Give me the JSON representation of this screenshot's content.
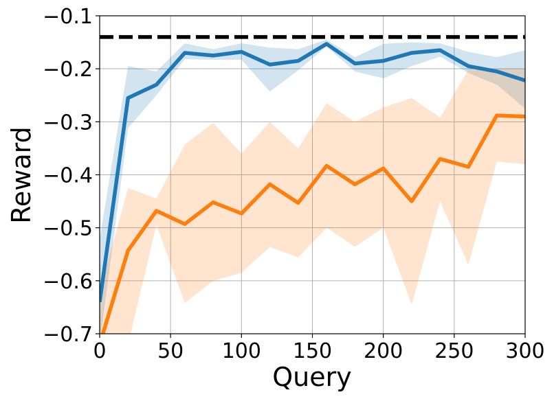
{
  "chart_data": {
    "type": "line",
    "title": "",
    "xlabel": "Query",
    "ylabel": "Reward",
    "xlim": [
      0,
      300
    ],
    "ylim": [
      -0.7,
      -0.1
    ],
    "grid": true,
    "x_ticks": [
      0,
      50,
      100,
      150,
      200,
      250,
      300
    ],
    "x_tick_labels": [
      "0",
      "50",
      "100",
      "150",
      "200",
      "250",
      "300"
    ],
    "y_ticks": [
      -0.7,
      -0.6,
      -0.5,
      -0.4,
      -0.3,
      -0.2,
      -0.1
    ],
    "y_tick_labels": [
      "−0.7",
      "−0.6",
      "−0.5",
      "−0.4",
      "−0.3",
      "−0.2",
      "−0.1"
    ],
    "x": [
      0,
      20,
      40,
      60,
      80,
      100,
      120,
      140,
      160,
      180,
      200,
      220,
      240,
      260,
      280,
      300
    ],
    "series": [
      {
        "color": "#1f77b4",
        "band_color": "#1f77b4",
        "values": [
          -0.64,
          -0.255,
          -0.23,
          -0.17,
          -0.175,
          -0.168,
          -0.192,
          -0.185,
          -0.153,
          -0.19,
          -0.185,
          -0.17,
          -0.165,
          -0.195,
          -0.205,
          -0.222
        ],
        "upper": [
          -0.52,
          -0.195,
          -0.205,
          -0.152,
          -0.163,
          -0.152,
          -0.16,
          -0.163,
          -0.145,
          -0.178,
          -0.153,
          -0.15,
          -0.152,
          -0.168,
          -0.178,
          -0.165
        ],
        "lower": [
          -0.72,
          -0.312,
          -0.25,
          -0.182,
          -0.183,
          -0.183,
          -0.243,
          -0.203,
          -0.158,
          -0.205,
          -0.218,
          -0.195,
          -0.177,
          -0.208,
          -0.23,
          -0.275
        ]
      },
      {
        "color": "#ff7f0e",
        "band_color": "#ff7f0e",
        "values": [
          -0.72,
          -0.543,
          -0.468,
          -0.493,
          -0.452,
          -0.473,
          -0.418,
          -0.453,
          -0.383,
          -0.418,
          -0.388,
          -0.45,
          -0.37,
          -0.385,
          -0.288,
          -0.29
        ],
        "upper": [
          -0.62,
          -0.425,
          -0.445,
          -0.343,
          -0.302,
          -0.36,
          -0.3,
          -0.35,
          -0.265,
          -0.3,
          -0.273,
          -0.255,
          -0.292,
          -0.202,
          -0.2,
          -0.2
        ],
        "lower": [
          -0.78,
          -0.72,
          -0.495,
          -0.642,
          -0.6,
          -0.585,
          -0.536,
          -0.556,
          -0.5,
          -0.536,
          -0.5,
          -0.645,
          -0.45,
          -0.57,
          -0.375,
          -0.38
        ]
      }
    ],
    "hline": {
      "y": -0.14,
      "color": "#000000",
      "style": "dashed"
    }
  }
}
